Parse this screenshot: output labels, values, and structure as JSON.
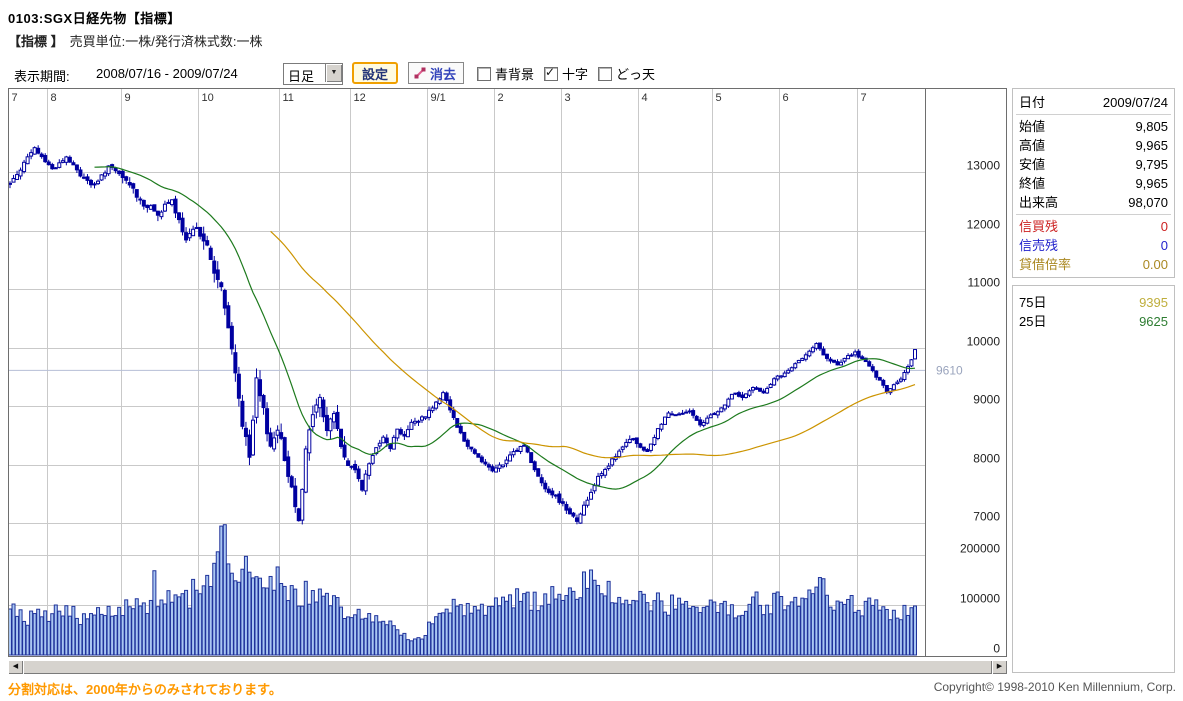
{
  "header": {
    "title": "0103:SGX日経先物【指標】",
    "subtitle_prefix": "【指標 】",
    "subtitle": "売買単位:一株/発行済株式数:一株"
  },
  "toolbar": {
    "period_label": "表示期間:",
    "period_value": "2008/07/16 - 2009/07/24",
    "interval_select": "日足",
    "settings_button": "設定",
    "erase_button": "消去",
    "checkboxes": [
      {
        "label": "青背景",
        "checked": false
      },
      {
        "label": "十字",
        "checked": true
      },
      {
        "label": "どっ天",
        "checked": false
      }
    ]
  },
  "chart_data": {
    "type": "candlestick",
    "instrument": "SGX日経先物",
    "date_range": "2008/07/16 - 2009/07/24",
    "total_bars": 258,
    "x_axis": {
      "month_labels": [
        "7",
        "8",
        "9",
        "10",
        "11",
        "12",
        "9/1",
        "2",
        "3",
        "4",
        "5",
        "6",
        "7"
      ],
      "month_start_bar": [
        0,
        11,
        32,
        54,
        77,
        97,
        119,
        138,
        157,
        179,
        200,
        219,
        241
      ]
    },
    "y_axis": {
      "price_ticks": [
        13000,
        12000,
        11000,
        10000,
        9000,
        8000,
        7000
      ],
      "price_range": [
        6500,
        14400
      ],
      "volume_ticks": [
        200000,
        100000,
        0
      ]
    },
    "crosshair_price": 9610,
    "last_candle": {
      "open": 9805,
      "high": 9965,
      "low": 9795,
      "close": 9965,
      "volume": 98070
    },
    "close_keyframes": [
      [
        0,
        12800
      ],
      [
        4,
        13150
      ],
      [
        7,
        13400
      ],
      [
        12,
        13050
      ],
      [
        16,
        13250
      ],
      [
        20,
        12950
      ],
      [
        24,
        12750
      ],
      [
        28,
        13100
      ],
      [
        33,
        12850
      ],
      [
        38,
        12450
      ],
      [
        42,
        12300
      ],
      [
        46,
        12500
      ],
      [
        50,
        11800
      ],
      [
        53,
        12100
      ],
      [
        56,
        11700
      ],
      [
        58,
        11300
      ],
      [
        60,
        11000
      ],
      [
        62,
        10300
      ],
      [
        64,
        9600
      ],
      [
        66,
        8700
      ],
      [
        68,
        8100
      ],
      [
        70,
        9400
      ],
      [
        72,
        8900
      ],
      [
        74,
        8300
      ],
      [
        76,
        8650
      ],
      [
        78,
        8100
      ],
      [
        80,
        7600
      ],
      [
        82,
        7100
      ],
      [
        84,
        8200
      ],
      [
        86,
        8900
      ],
      [
        88,
        9100
      ],
      [
        90,
        8600
      ],
      [
        92,
        8900
      ],
      [
        94,
        8300
      ],
      [
        96,
        8000
      ],
      [
        98,
        7900
      ],
      [
        100,
        7600
      ],
      [
        102,
        8000
      ],
      [
        104,
        8300
      ],
      [
        106,
        8500
      ],
      [
        108,
        8300
      ],
      [
        110,
        8600
      ],
      [
        112,
        8500
      ],
      [
        114,
        8700
      ],
      [
        116,
        8750
      ],
      [
        118,
        8850
      ],
      [
        121,
        9050
      ],
      [
        123,
        9250
      ],
      [
        126,
        8800
      ],
      [
        129,
        8400
      ],
      [
        132,
        8200
      ],
      [
        135,
        8000
      ],
      [
        137,
        7900
      ],
      [
        140,
        8000
      ],
      [
        143,
        8200
      ],
      [
        146,
        8350
      ],
      [
        149,
        7900
      ],
      [
        152,
        7600
      ],
      [
        155,
        7450
      ],
      [
        158,
        7250
      ],
      [
        161,
        7050
      ],
      [
        164,
        7400
      ],
      [
        167,
        7800
      ],
      [
        170,
        8000
      ],
      [
        173,
        8200
      ],
      [
        176,
        8450
      ],
      [
        178,
        8350
      ],
      [
        181,
        8200
      ],
      [
        184,
        8600
      ],
      [
        187,
        8900
      ],
      [
        190,
        8850
      ],
      [
        193,
        8900
      ],
      [
        196,
        8650
      ],
      [
        199,
        8850
      ],
      [
        202,
        8950
      ],
      [
        205,
        9200
      ],
      [
        208,
        9150
      ],
      [
        211,
        9300
      ],
      [
        214,
        9250
      ],
      [
        217,
        9450
      ],
      [
        220,
        9550
      ],
      [
        223,
        9700
      ],
      [
        226,
        9900
      ],
      [
        229,
        10050
      ],
      [
        232,
        9800
      ],
      [
        235,
        9700
      ],
      [
        238,
        9850
      ],
      [
        240,
        9900
      ],
      [
        243,
        9750
      ],
      [
        246,
        9500
      ],
      [
        249,
        9250
      ],
      [
        252,
        9400
      ],
      [
        254,
        9550
      ],
      [
        255,
        9650
      ],
      [
        256,
        9800
      ],
      [
        257,
        9965
      ]
    ],
    "volume_keyframes": [
      [
        0,
        85000
      ],
      [
        5,
        75000
      ],
      [
        10,
        80000
      ],
      [
        15,
        90000
      ],
      [
        20,
        78000
      ],
      [
        25,
        85000
      ],
      [
        30,
        95000
      ],
      [
        35,
        100000
      ],
      [
        40,
        100000
      ],
      [
        41,
        216000
      ],
      [
        42,
        105000
      ],
      [
        46,
        120000
      ],
      [
        50,
        110000
      ],
      [
        54,
        140000
      ],
      [
        57,
        160000
      ],
      [
        59,
        200000
      ],
      [
        61,
        230000
      ],
      [
        63,
        185000
      ],
      [
        66,
        170000
      ],
      [
        68,
        155000
      ],
      [
        70,
        185000
      ],
      [
        73,
        160000
      ],
      [
        76,
        150000
      ],
      [
        80,
        130000
      ],
      [
        84,
        120000
      ],
      [
        88,
        110000
      ],
      [
        92,
        100000
      ],
      [
        96,
        90000
      ],
      [
        100,
        80000
      ],
      [
        104,
        70000
      ],
      [
        108,
        65000
      ],
      [
        112,
        40000
      ],
      [
        115,
        28000
      ],
      [
        118,
        35000
      ],
      [
        120,
        80000
      ],
      [
        124,
        95000
      ],
      [
        128,
        100000
      ],
      [
        132,
        90000
      ],
      [
        136,
        95000
      ],
      [
        140,
        100000
      ],
      [
        144,
        110000
      ],
      [
        148,
        105000
      ],
      [
        152,
        115000
      ],
      [
        156,
        120000
      ],
      [
        160,
        130000
      ],
      [
        163,
        150000
      ],
      [
        166,
        135000
      ],
      [
        170,
        120000
      ],
      [
        174,
        115000
      ],
      [
        178,
        110000
      ],
      [
        182,
        105000
      ],
      [
        186,
        100000
      ],
      [
        190,
        105000
      ],
      [
        194,
        95000
      ],
      [
        198,
        90000
      ],
      [
        202,
        88000
      ],
      [
        206,
        95000
      ],
      [
        210,
        105000
      ],
      [
        214,
        100000
      ],
      [
        218,
        110000
      ],
      [
        222,
        115000
      ],
      [
        226,
        125000
      ],
      [
        229,
        140000
      ],
      [
        232,
        120000
      ],
      [
        236,
        105000
      ],
      [
        240,
        100000
      ],
      [
        244,
        95000
      ],
      [
        248,
        90000
      ],
      [
        252,
        88000
      ],
      [
        255,
        92000
      ],
      [
        257,
        98070
      ]
    ],
    "moving_averages": [
      {
        "name": "25日",
        "period": 25,
        "color": "#1d7a1d",
        "last_value": 9625
      },
      {
        "name": "75日",
        "period": 75,
        "color": "#cc9400",
        "last_value": 9395
      }
    ]
  },
  "panel": {
    "quote_rows": [
      {
        "label": "日付",
        "value": "2009/07/24",
        "sep_after": true
      },
      {
        "label": "始値",
        "value": "9,805"
      },
      {
        "label": "高値",
        "value": "9,965"
      },
      {
        "label": "安値",
        "value": "9,795"
      },
      {
        "label": "終値",
        "value": "9,965"
      },
      {
        "label": "出来高",
        "value": "98,070",
        "sep_after": true
      },
      {
        "label": "信買残",
        "value": "0",
        "label_color": "#cc2222",
        "value_color": "#cc2222"
      },
      {
        "label": "信売残",
        "value": "0",
        "label_color": "#2222cc",
        "value_color": "#2222cc"
      },
      {
        "label": "貸借倍率",
        "value": "0.00",
        "label_color": "#aa8822",
        "value_color": "#aa8822"
      }
    ],
    "ma_rows": [
      {
        "label": "75日",
        "value": "9395",
        "value_color": "#bfae3c"
      },
      {
        "label": "25日",
        "value": "9625",
        "value_color": "#2e7d32"
      }
    ]
  },
  "footer": {
    "note": "分割対応は、2000年からのみされております。",
    "copyright": "Copyright© 1998-2010 Ken Millennium, Corp."
  },
  "colors": {
    "candle": "#0000a0",
    "candle_up_fill": "#ffffff",
    "volume_fill": "#a9c6f2",
    "volume_border": "#20339b",
    "grid": "#c9c9c9",
    "crosshair_line": "#b6bed6",
    "crosshair_label": "#9aa4bd",
    "frame": "#6e6e6e",
    "axis_text": "#222222"
  }
}
